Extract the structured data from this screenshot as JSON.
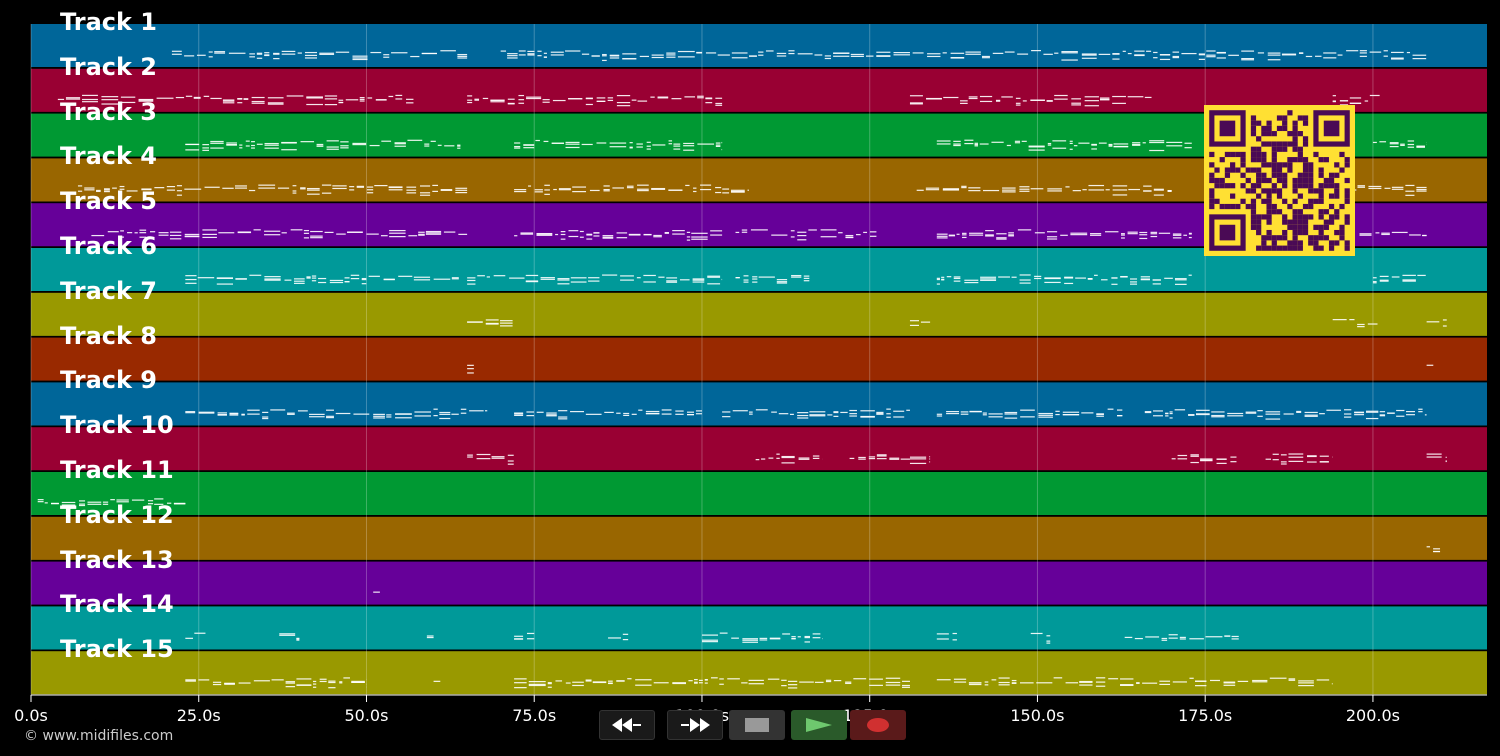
{
  "window": {
    "background": "#000000"
  },
  "tracks": [
    {
      "label": "Track 1",
      "color": "#006699"
    },
    {
      "label": "Track 2",
      "color": "#990033"
    },
    {
      "label": "Track 3",
      "color": "#009933"
    },
    {
      "label": "Track 4",
      "color": "#996600"
    },
    {
      "label": "Track 5",
      "color": "#660099"
    },
    {
      "label": "Track 6",
      "color": "#009999"
    },
    {
      "label": "Track 7",
      "color": "#999900"
    },
    {
      "label": "Track 8",
      "color": "#992900"
    },
    {
      "label": "Track 9",
      "color": "#006699"
    },
    {
      "label": "Track 10",
      "color": "#990033"
    },
    {
      "label": "Track 11",
      "color": "#009933"
    },
    {
      "label": "Track 12",
      "color": "#996600"
    },
    {
      "label": "Track 13",
      "color": "#660099"
    },
    {
      "label": "Track 14",
      "color": "#009999"
    },
    {
      "label": "Track 15",
      "color": "#999900"
    }
  ],
  "timeline": {
    "ticks": [
      "0.0s",
      "25.0s",
      "50.0s",
      "75.0s",
      "100.0s",
      "125.0s",
      "150.0s",
      "175.0s",
      "200.0s"
    ],
    "tick_seconds": [
      0,
      25,
      50,
      75,
      100,
      125,
      150,
      175,
      200
    ],
    "max_seconds": 217
  },
  "notes": [
    {
      "track": 0,
      "spans": [
        [
          21,
          65
        ],
        [
          70,
          208
        ]
      ]
    },
    {
      "track": 1,
      "spans": [
        [
          4,
          57
        ],
        [
          65,
          103
        ],
        [
          131,
          167
        ],
        [
          194,
          201
        ]
      ]
    },
    {
      "track": 2,
      "spans": [
        [
          23,
          64
        ],
        [
          72,
          103
        ],
        [
          135,
          173
        ],
        [
          200,
          208
        ]
      ]
    },
    {
      "track": 3,
      "spans": [
        [
          7,
          65
        ],
        [
          72,
          107
        ],
        [
          132,
          170
        ],
        [
          197,
          208
        ]
      ]
    },
    {
      "track": 4,
      "spans": [
        [
          9,
          65
        ],
        [
          72,
          103
        ],
        [
          105,
          126
        ],
        [
          135,
          173
        ],
        [
          198,
          208
        ]
      ]
    },
    {
      "track": 5,
      "spans": [
        [
          23,
          64
        ],
        [
          65,
          103
        ],
        [
          105,
          116
        ],
        [
          135,
          173
        ],
        [
          200,
          208
        ]
      ]
    },
    {
      "track": 6,
      "spans": [
        [
          65,
          72
        ],
        [
          131,
          134
        ],
        [
          194,
          201
        ],
        [
          208,
          211
        ]
      ]
    },
    {
      "track": 7,
      "spans": [
        [
          65,
          66
        ],
        [
          208,
          209
        ]
      ]
    },
    {
      "track": 8,
      "spans": [
        [
          23,
          68
        ],
        [
          72,
          100
        ],
        [
          103,
          131
        ],
        [
          135,
          163
        ],
        [
          166,
          208
        ]
      ]
    },
    {
      "track": 9,
      "spans": [
        [
          65,
          72
        ],
        [
          108,
          118
        ],
        [
          122,
          131
        ],
        [
          131,
          134
        ],
        [
          170,
          180
        ],
        [
          184,
          194
        ],
        [
          208,
          211
        ]
      ]
    },
    {
      "track": 10,
      "spans": [
        [
          1,
          23
        ]
      ]
    },
    {
      "track": 11,
      "spans": [
        [
          208,
          210
        ]
      ]
    },
    {
      "track": 12,
      "spans": [
        [
          51,
          52
        ]
      ]
    },
    {
      "track": 13,
      "spans": [
        [
          23,
          26
        ],
        [
          37,
          40
        ],
        [
          59,
          60
        ],
        [
          72,
          75
        ],
        [
          86,
          89
        ],
        [
          100,
          118
        ],
        [
          135,
          138
        ],
        [
          149,
          152
        ],
        [
          163,
          180
        ]
      ]
    },
    {
      "track": 14,
      "spans": [
        [
          23,
          50
        ],
        [
          60,
          61
        ],
        [
          72,
          131
        ],
        [
          135,
          194
        ]
      ]
    }
  ],
  "transport": {
    "rewind_icon": "rewind-icon",
    "fast_forward_icon": "fast-forward-icon",
    "stop_icon": "stop-icon",
    "play_icon": "play-icon",
    "record_icon": "record-icon"
  },
  "qr_code": {
    "icon": "qr-code-icon",
    "fg": "#ffe033",
    "bg": "#4a0a55"
  },
  "footer": {
    "copyright": "© www.midifiles.com"
  }
}
